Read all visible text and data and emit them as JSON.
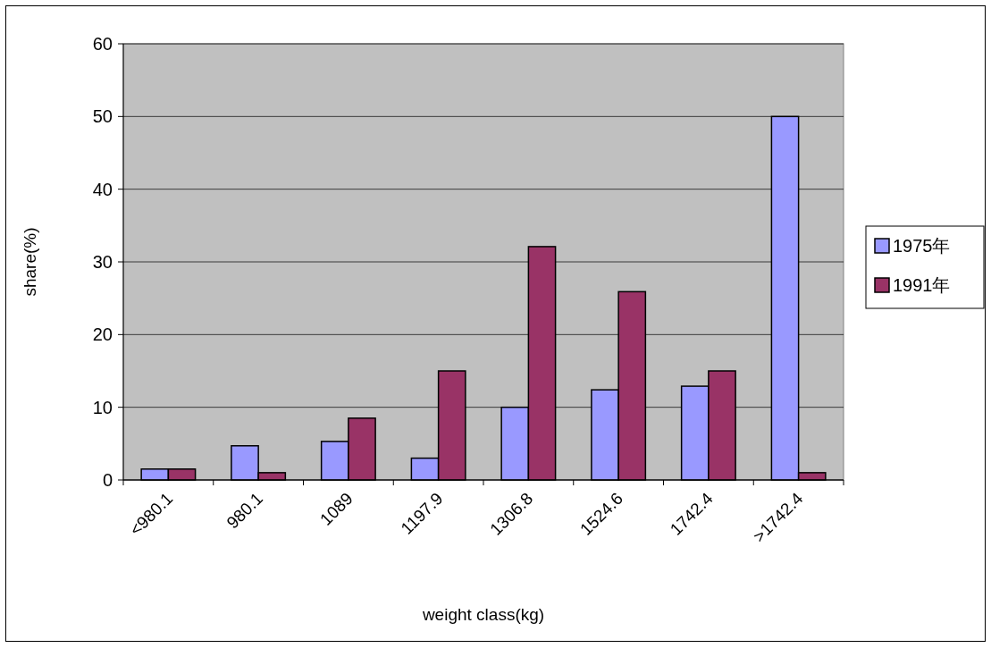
{
  "chart_data": {
    "type": "bar",
    "xlabel": "weight class(kg)",
    "ylabel": "share(%)",
    "categories": [
      "<980.1",
      "980.1",
      "1089",
      "1197.9",
      "1306.8",
      "1524.6",
      "1742.4",
      ">1742.4"
    ],
    "series": [
      {
        "name": "1975年",
        "color": "#9999ff",
        "values": [
          1.5,
          4.7,
          5.3,
          3.0,
          10,
          12.4,
          12.9,
          50
        ]
      },
      {
        "name": "1991年",
        "color": "#993366",
        "values": [
          1.5,
          1.0,
          8.5,
          15,
          32.1,
          25.9,
          15,
          1.0
        ]
      }
    ],
    "ylim": [
      0,
      60
    ],
    "yticks": [
      0,
      10,
      20,
      30,
      40,
      50,
      60
    ],
    "grid": "y",
    "legend": "right"
  }
}
